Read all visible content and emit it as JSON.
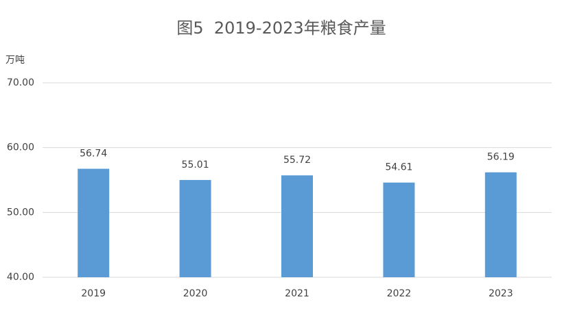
{
  "chart_data": {
    "type": "bar",
    "title": "图5  2019-2023年粮食产量",
    "y_label": "万吨",
    "categories": [
      "2019",
      "2020",
      "2021",
      "2022",
      "2023"
    ],
    "values": [
      56.74,
      55.01,
      55.72,
      54.61,
      56.19
    ],
    "value_labels": [
      "56.74",
      "55.01",
      "55.72",
      "54.61",
      "56.19"
    ],
    "color": "#5b9bd5",
    "ylim": [
      40,
      70
    ],
    "yticks": [
      {
        "value": 40,
        "label": "40.00"
      },
      {
        "value": 50,
        "label": "50.00"
      },
      {
        "value": 60,
        "label": "60.00"
      },
      {
        "value": 70,
        "label": "70.00"
      }
    ],
    "grid": true
  }
}
